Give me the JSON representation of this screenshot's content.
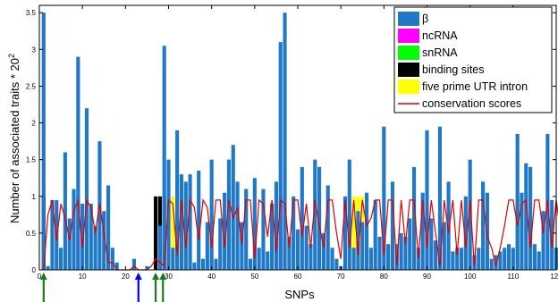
{
  "chart_data": {
    "type": "bar",
    "xlabel": "SNPs",
    "ylabel": "Number of associated traits * 20",
    "ylabel_sup": "2",
    "xlim": [
      0,
      120
    ],
    "ylim": [
      0,
      3.6
    ],
    "x_ticks": [
      0,
      10,
      20,
      30,
      40,
      50,
      60,
      70,
      80,
      90,
      100,
      110,
      120
    ],
    "y_ticks": [
      0,
      0.5,
      1,
      1.5,
      2,
      2.5,
      3,
      3.5
    ],
    "x_tick_labels": [
      "0",
      "10",
      "20",
      "30",
      "40",
      "50",
      "60",
      "70",
      "80",
      "90",
      "100",
      "110",
      "120"
    ],
    "y_tick_labels": [
      "0",
      "0.5",
      "1",
      "1.5",
      "2",
      "2.5",
      "3",
      "3.5"
    ],
    "legend": [
      {
        "label": "β",
        "color": "#1f78c8",
        "type": "bar"
      },
      {
        "label": "ncRNA",
        "color": "#ff00ff",
        "type": "bar"
      },
      {
        "label": "snRNA",
        "color": "#00ff00",
        "type": "bar"
      },
      {
        "label": "binding sites",
        "color": "#000000",
        "type": "bar"
      },
      {
        "label": "five prime UTR intron",
        "color": "#ffff00",
        "type": "bar"
      },
      {
        "label": "conservation scores",
        "color": "#e00000",
        "type": "line"
      }
    ],
    "series": [
      {
        "name": "β",
        "color": "#1f78c8",
        "values": [
          3.5,
          0.05,
          0.95,
          0.95,
          0.3,
          1.6,
          0.7,
          1.1,
          2.9,
          0.9,
          2.2,
          0.9,
          0.6,
          1.75,
          0.8,
          1.15,
          0.3,
          0.1,
          0,
          0,
          0,
          0.15,
          0,
          0,
          0.05,
          0,
          0,
          0.6,
          3.05,
          1.5,
          0.3,
          1.9,
          1.3,
          1.2,
          1.3,
          0.1,
          1.35,
          0.15,
          0.65,
          1.5,
          0.15,
          0.7,
          1.05,
          1.5,
          1.7,
          1.2,
          0.65,
          1.1,
          0.15,
          1.25,
          0.3,
          1.1,
          0.25,
          0.9,
          1.2,
          3.1,
          3.5,
          0.45,
          1.0,
          0.55,
          1.4,
          0.6,
          0.35,
          1.5,
          1.4,
          0.5,
          1.15,
          0.3,
          0.15,
          0.05,
          1.0,
          1.5,
          0.3,
          0.8,
          0.65,
          1.05,
          0.3,
          0.95,
          0.45,
          1.95,
          0.35,
          1.2,
          0.35,
          0.5,
          0.45,
          0.7,
          1.4,
          0.3,
          1.05,
          1.9,
          0.7,
          0.4,
          1.95,
          0.65,
          1.2,
          0.25,
          0.3,
          0.3,
          1.0,
          1.5,
          0.2,
          0.3,
          1.2,
          1.05,
          0.15,
          0.2,
          0.25,
          0.3,
          0.35,
          0.3,
          1.85,
          1.05,
          1.45,
          1.4,
          0.35,
          0.25,
          0.8,
          1.85,
          0.95,
          0.3,
          1.65
        ]
      },
      {
        "name": "conservation scores",
        "color": "#e00000",
        "values": [
          0,
          0.75,
          0.95,
          0.4,
          0.9,
          0.7,
          0.4,
          0.8,
          0.95,
          0.3,
          0.95,
          0.85,
          0.5,
          0.9,
          0.5,
          0.1,
          0.1,
          0,
          0,
          0,
          0,
          0.05,
          0,
          0,
          0,
          0.05,
          0.15,
          0.1,
          0.05,
          0.95,
          0.9,
          0.2,
          0.95,
          0.3,
          0.95,
          0.85,
          0.4,
          0.95,
          0.85,
          0.3,
          0.95,
          0.95,
          0.3,
          0.95,
          0.7,
          0.85,
          0.35,
          0.95,
          0.95,
          0.15,
          0.95,
          0.9,
          0.45,
          0.95,
          0.25,
          0.95,
          0.9,
          0.3,
          0.95,
          0.95,
          0.45,
          0.9,
          0.3,
          0.95,
          0.6,
          0.3,
          0.95,
          0.95,
          0.5,
          0.15,
          0.95,
          0.3,
          0.95,
          0.2,
          0.95,
          0.6,
          0.7,
          0.95,
          0.95,
          0.2,
          0.95,
          0.95,
          0.05,
          0.95,
          0.35,
          0.95,
          0.95,
          0.15,
          0.95,
          0.3,
          0.95,
          0.5,
          0.05,
          0.95,
          0.5,
          0.95,
          0.2,
          0.95,
          0.3,
          0.95,
          0.05,
          0.95,
          0.95,
          0.45,
          0.3,
          0.05,
          0.3,
          0.6,
          0.95,
          0.95,
          0.6,
          0.9,
          0.95,
          0.3,
          0.95,
          0.95,
          0.5,
          0.95,
          0.3,
          0.95,
          0.5
        ]
      }
    ],
    "annotation_bars": [
      {
        "category": "ncRNA",
        "color": "#ff00ff",
        "x": [
          9,
          56
        ]
      },
      {
        "category": "snRNA",
        "color": "#00ff00",
        "x": [
          111
        ]
      },
      {
        "category": "binding sites",
        "color": "#000000",
        "x": [
          1,
          27,
          28,
          29
        ]
      },
      {
        "category": "five prime UTR intron",
        "color": "#ffff00",
        "x": [
          31,
          32,
          33,
          34,
          73,
          74,
          75,
          76
        ]
      }
    ],
    "arrows": [
      {
        "x": 1,
        "color": "#1a7a1a"
      },
      {
        "x": 23,
        "color": "#0000ff"
      },
      {
        "x": 27,
        "color": "#1a7a1a"
      },
      {
        "x": 28.7,
        "color": "#1a7a1a"
      }
    ],
    "grid": false,
    "legend_position": "top-right"
  }
}
